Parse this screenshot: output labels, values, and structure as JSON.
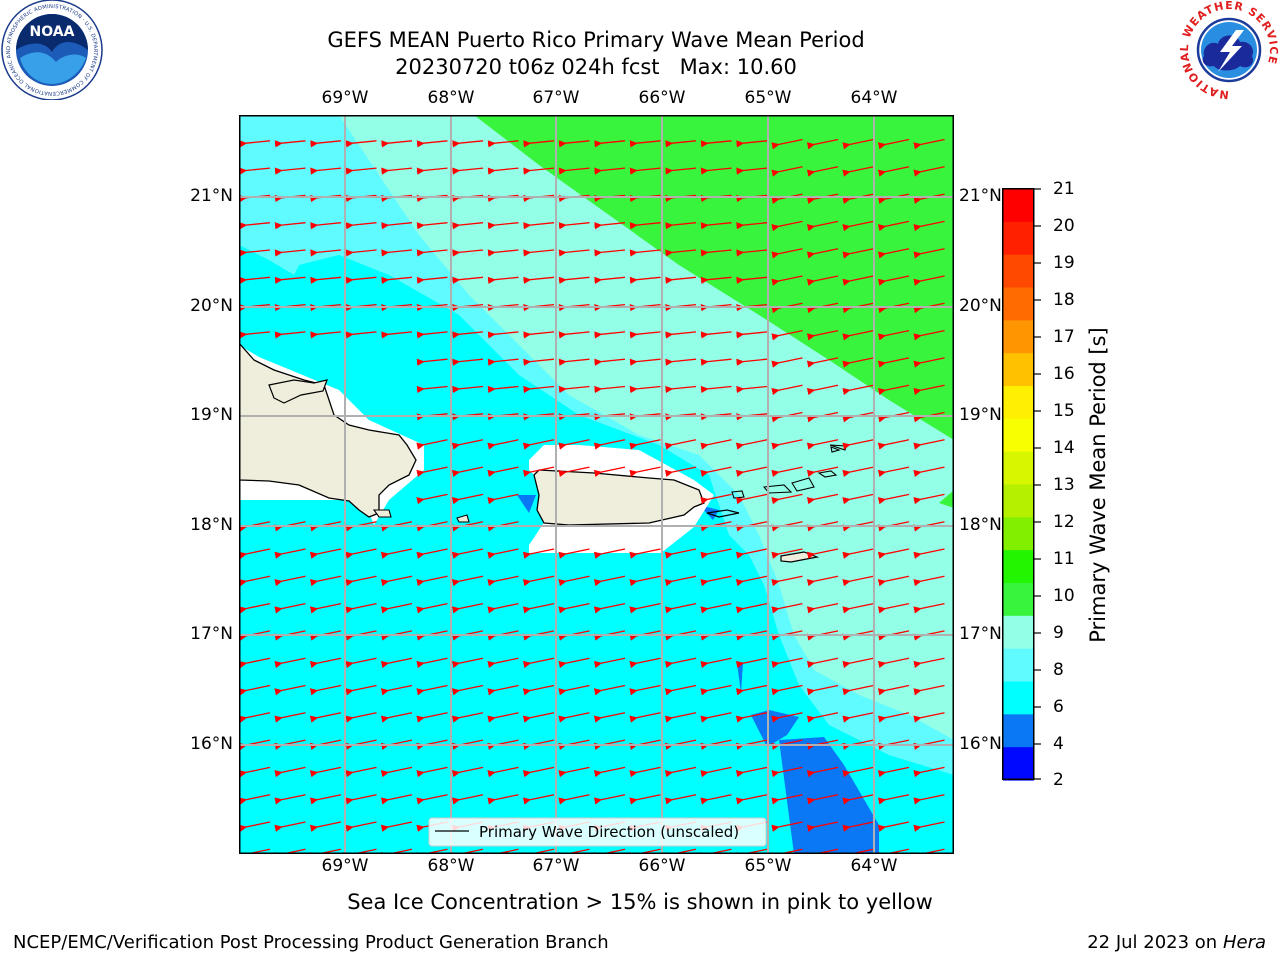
{
  "header": {
    "title_line1": "GEFS MEAN Puerto Rico Primary Wave Mean Period",
    "title_line2": "20230720 t06z 024h fcst   Max: 10.60"
  },
  "logos": {
    "left": {
      "name": "NOAA",
      "text": "NOAA",
      "ring_text": "NATIONAL OCEANIC AND ATMOSPHERIC ADMINISTRATION · U.S. DEPARTMENT OF COMMERCE"
    },
    "right": {
      "name": "National Weather Service",
      "ring_text": "NATIONAL WEATHER SERVICE"
    }
  },
  "map": {
    "lon_labels": [
      "69°W",
      "68°W",
      "67°W",
      "66°W",
      "65°W",
      "64°W"
    ],
    "lat_labels": [
      "21°N",
      "20°N",
      "19°N",
      "18°N",
      "17°N",
      "16°N"
    ],
    "legend": "Primary Wave Direction (unscaled)",
    "colors": {
      "land": "#efeedd",
      "band_6_8": "#00ffff",
      "band_8_9": "#5ffbff",
      "band_9_10": "#93ffe6",
      "band_10_11": "#38f43c",
      "band_4_6": "#0a78f5",
      "arrow": "#ff0000",
      "grid": "#b0b0b0"
    }
  },
  "colorbar": {
    "label": "Primary Wave Mean Period [s]",
    "ticks": [
      "21",
      "20",
      "19",
      "18",
      "17",
      "16",
      "15",
      "14",
      "13",
      "12",
      "11",
      "10",
      "9",
      "8",
      "6",
      "4",
      "2"
    ],
    "colors_top_to_bottom": [
      "#ff0000",
      "#ff2000",
      "#ff4800",
      "#ff6b00",
      "#ff9500",
      "#ffc100",
      "#ffef00",
      "#f7ff00",
      "#d6f700",
      "#b4f000",
      "#83ef00",
      "#21f600",
      "#38f43c",
      "#93ffe6",
      "#5ffbff",
      "#00ffff",
      "#0a78f5",
      "#0008ff"
    ]
  },
  "notes": {
    "sea_ice": "Sea Ice Concentration > 15% is shown in pink to yellow"
  },
  "footer": {
    "left": "NCEP/EMC/Verification Post Processing Product Generation Branch",
    "right_date": "22 Jul 2023 on ",
    "right_machine": "Hera"
  }
}
